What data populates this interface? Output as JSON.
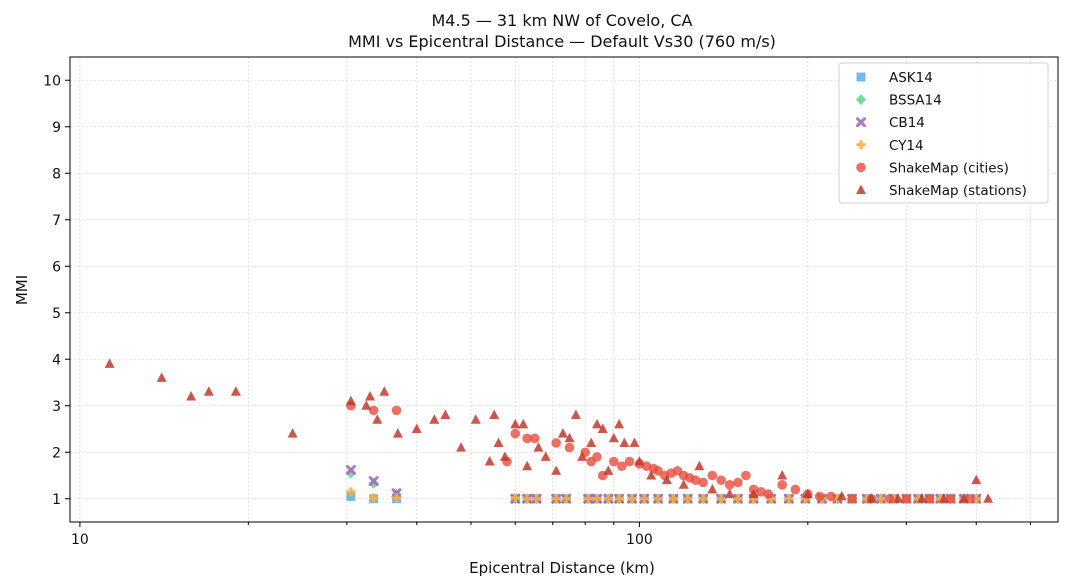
{
  "chart_data": {
    "type": "scatter",
    "title": "M4.5 — 31 km NW of Covelo, CA",
    "subtitle": "MMI vs Epicentral Distance — Default Vs30 (760 m/s)",
    "xlabel": "Epicentral Distance (km)",
    "ylabel": "MMI",
    "xscale": "log",
    "xlim": [
      9.6,
      560
    ],
    "ylim": [
      0.5,
      10.5
    ],
    "xticks": [
      10,
      100
    ],
    "xtick_labels": [
      "10",
      "100"
    ],
    "yticks": [
      1,
      2,
      3,
      4,
      5,
      6,
      7,
      8,
      9,
      10
    ],
    "grid": true,
    "legend_position": "top-right",
    "series": [
      {
        "name": "ASK14",
        "marker": "square",
        "color": "#5DADE2",
        "points": [
          [
            30.5,
            1.05
          ],
          [
            33.5,
            1.0
          ],
          [
            36.8,
            1.0
          ],
          [
            60,
            1.0
          ],
          [
            63,
            1.0
          ],
          [
            65.5,
            1.0
          ],
          [
            71,
            1.0
          ],
          [
            74,
            1.0
          ],
          [
            81,
            1.0
          ],
          [
            84,
            1.0
          ],
          [
            88,
            1.0
          ],
          [
            92,
            1.0
          ],
          [
            97,
            1.0
          ],
          [
            102,
            1.0
          ],
          [
            108,
            1.0
          ],
          [
            115,
            1.0
          ],
          [
            122,
            1.0
          ],
          [
            130,
            1.0
          ],
          [
            140,
            1.0
          ],
          [
            150,
            1.0
          ],
          [
            160,
            1.0
          ],
          [
            172,
            1.0
          ],
          [
            185,
            1.0
          ],
          [
            198,
            1.0
          ],
          [
            212,
            1.0
          ],
          [
            226,
            1.0
          ],
          [
            240,
            1.0
          ],
          [
            255,
            1.0
          ],
          [
            270,
            1.0
          ],
          [
            285,
            1.0
          ],
          [
            300,
            1.0
          ],
          [
            315,
            1.0
          ],
          [
            330,
            1.0
          ],
          [
            345,
            1.0
          ],
          [
            360,
            1.0
          ],
          [
            380,
            1.0
          ],
          [
            400,
            1.0
          ]
        ]
      },
      {
        "name": "BSSA14",
        "marker": "diamond",
        "color": "#58D68D",
        "points": [
          [
            30.5,
            1.55
          ],
          [
            33.5,
            1.33
          ],
          [
            36.8,
            1.1
          ],
          [
            60,
            1.0
          ],
          [
            63,
            1.0
          ],
          [
            65.5,
            1.0
          ],
          [
            71,
            1.0
          ],
          [
            74,
            1.0
          ],
          [
            81,
            1.0
          ],
          [
            84,
            1.0
          ],
          [
            88,
            1.0
          ],
          [
            92,
            1.0
          ],
          [
            97,
            1.0
          ],
          [
            102,
            1.0
          ],
          [
            108,
            1.0
          ],
          [
            115,
            1.0
          ],
          [
            122,
            1.0
          ],
          [
            130,
            1.0
          ],
          [
            140,
            1.0
          ],
          [
            150,
            1.0
          ],
          [
            160,
            1.0
          ],
          [
            172,
            1.0
          ],
          [
            185,
            1.0
          ],
          [
            198,
            1.0
          ],
          [
            212,
            1.0
          ],
          [
            226,
            1.0
          ],
          [
            240,
            1.0
          ],
          [
            255,
            1.0
          ],
          [
            270,
            1.0
          ],
          [
            285,
            1.0
          ],
          [
            300,
            1.0
          ],
          [
            315,
            1.0
          ],
          [
            330,
            1.0
          ],
          [
            345,
            1.0
          ],
          [
            360,
            1.0
          ],
          [
            380,
            1.0
          ],
          [
            400,
            1.0
          ]
        ]
      },
      {
        "name": "CB14",
        "marker": "x",
        "color": "#A569BD",
        "points": [
          [
            30.5,
            1.62
          ],
          [
            33.5,
            1.38
          ],
          [
            36.8,
            1.12
          ],
          [
            60,
            1.0
          ],
          [
            63,
            1.0
          ],
          [
            65.5,
            1.0
          ],
          [
            71,
            1.0
          ],
          [
            74,
            1.0
          ],
          [
            81,
            1.0
          ],
          [
            84,
            1.0
          ],
          [
            88,
            1.0
          ],
          [
            92,
            1.0
          ],
          [
            97,
            1.0
          ],
          [
            102,
            1.0
          ],
          [
            108,
            1.0
          ],
          [
            115,
            1.0
          ],
          [
            122,
            1.0
          ],
          [
            130,
            1.0
          ],
          [
            140,
            1.0
          ],
          [
            150,
            1.0
          ],
          [
            160,
            1.0
          ],
          [
            172,
            1.0
          ],
          [
            185,
            1.0
          ],
          [
            198,
            1.0
          ],
          [
            212,
            1.0
          ],
          [
            226,
            1.0
          ],
          [
            240,
            1.0
          ],
          [
            255,
            1.0
          ],
          [
            270,
            1.0
          ],
          [
            285,
            1.0
          ],
          [
            300,
            1.0
          ],
          [
            315,
            1.0
          ],
          [
            330,
            1.0
          ],
          [
            345,
            1.0
          ],
          [
            360,
            1.0
          ],
          [
            380,
            1.0
          ],
          [
            400,
            1.0
          ]
        ]
      },
      {
        "name": "CY14",
        "marker": "plus",
        "color": "#F5B041",
        "points": [
          [
            30.5,
            1.15
          ],
          [
            33.5,
            1.02
          ],
          [
            36.8,
            1.02
          ],
          [
            60,
            1.02
          ],
          [
            63,
            1.0
          ],
          [
            65.5,
            1.0
          ],
          [
            71,
            1.0
          ],
          [
            74,
            1.0
          ],
          [
            81,
            1.0
          ],
          [
            84,
            1.0
          ],
          [
            88,
            1.0
          ],
          [
            92,
            1.0
          ],
          [
            97,
            1.0
          ],
          [
            102,
            1.0
          ],
          [
            108,
            1.0
          ],
          [
            115,
            1.0
          ],
          [
            122,
            1.0
          ],
          [
            130,
            1.0
          ],
          [
            140,
            1.0
          ],
          [
            150,
            1.0
          ],
          [
            160,
            1.0
          ],
          [
            172,
            1.0
          ],
          [
            185,
            1.0
          ],
          [
            198,
            1.0
          ],
          [
            212,
            1.0
          ],
          [
            226,
            1.0
          ],
          [
            240,
            1.0
          ],
          [
            255,
            1.0
          ],
          [
            270,
            1.0
          ],
          [
            285,
            1.0
          ],
          [
            300,
            1.0
          ],
          [
            315,
            1.0
          ],
          [
            330,
            1.0
          ],
          [
            345,
            1.0
          ],
          [
            360,
            1.0
          ],
          [
            380,
            1.0
          ],
          [
            400,
            1.0
          ]
        ]
      },
      {
        "name": "ShakeMap (cities)",
        "marker": "circle",
        "color": "#E74C3C",
        "points": [
          [
            30.5,
            3.0
          ],
          [
            33.5,
            2.9
          ],
          [
            36.8,
            2.9
          ],
          [
            58,
            1.8
          ],
          [
            60,
            2.4
          ],
          [
            63,
            2.3
          ],
          [
            65,
            2.3
          ],
          [
            71,
            2.2
          ],
          [
            75,
            2.1
          ],
          [
            80,
            2.0
          ],
          [
            82,
            1.8
          ],
          [
            84,
            1.9
          ],
          [
            86,
            1.5
          ],
          [
            90,
            1.8
          ],
          [
            93,
            1.7
          ],
          [
            96,
            1.8
          ],
          [
            100,
            1.75
          ],
          [
            103,
            1.7
          ],
          [
            106,
            1.65
          ],
          [
            108,
            1.6
          ],
          [
            111,
            1.5
          ],
          [
            114,
            1.55
          ],
          [
            117,
            1.6
          ],
          [
            120,
            1.5
          ],
          [
            123,
            1.45
          ],
          [
            126,
            1.4
          ],
          [
            130,
            1.35
          ],
          [
            135,
            1.5
          ],
          [
            140,
            1.4
          ],
          [
            145,
            1.3
          ],
          [
            150,
            1.35
          ],
          [
            155,
            1.5
          ],
          [
            160,
            1.2
          ],
          [
            165,
            1.15
          ],
          [
            170,
            1.1
          ],
          [
            180,
            1.3
          ],
          [
            190,
            1.2
          ],
          [
            200,
            1.1
          ],
          [
            210,
            1.05
          ],
          [
            220,
            1.05
          ],
          [
            240,
            1.0
          ],
          [
            260,
            1.0
          ],
          [
            280,
            1.0
          ],
          [
            300,
            1.0
          ],
          [
            330,
            1.0
          ],
          [
            360,
            1.0
          ],
          [
            390,
            1.0
          ]
        ]
      },
      {
        "name": "ShakeMap (stations)",
        "marker": "triangle",
        "color": "#C0392B",
        "points": [
          [
            11.3,
            3.9
          ],
          [
            14,
            3.6
          ],
          [
            15.8,
            3.2
          ],
          [
            17,
            3.3
          ],
          [
            19,
            3.3
          ],
          [
            24,
            2.4
          ],
          [
            30.5,
            3.1
          ],
          [
            32.5,
            3.0
          ],
          [
            33,
            3.2
          ],
          [
            34,
            2.7
          ],
          [
            35,
            3.3
          ],
          [
            37,
            2.4
          ],
          [
            40,
            2.5
          ],
          [
            43,
            2.7
          ],
          [
            45,
            2.8
          ],
          [
            48,
            2.1
          ],
          [
            51,
            2.7
          ],
          [
            54,
            1.8
          ],
          [
            55,
            2.8
          ],
          [
            56,
            2.2
          ],
          [
            57.5,
            1.9
          ],
          [
            60,
            2.6
          ],
          [
            62,
            2.6
          ],
          [
            63,
            1.7
          ],
          [
            66,
            2.1
          ],
          [
            68,
            1.9
          ],
          [
            71,
            1.6
          ],
          [
            73,
            2.4
          ],
          [
            75,
            2.3
          ],
          [
            77,
            2.8
          ],
          [
            79,
            1.9
          ],
          [
            82,
            2.2
          ],
          [
            84,
            2.6
          ],
          [
            86,
            2.5
          ],
          [
            88,
            1.6
          ],
          [
            90,
            2.3
          ],
          [
            92,
            2.6
          ],
          [
            94,
            2.2
          ],
          [
            98,
            2.2
          ],
          [
            100,
            1.8
          ],
          [
            105,
            1.5
          ],
          [
            112,
            1.4
          ],
          [
            120,
            1.3
          ],
          [
            128,
            1.7
          ],
          [
            135,
            1.2
          ],
          [
            145,
            1.1
          ],
          [
            160,
            1.1
          ],
          [
            180,
            1.5
          ],
          [
            200,
            1.1
          ],
          [
            230,
            1.05
          ],
          [
            260,
            1.0
          ],
          [
            290,
            1.0
          ],
          [
            320,
            1.0
          ],
          [
            350,
            1.0
          ],
          [
            380,
            1.0
          ],
          [
            400,
            1.4
          ],
          [
            420,
            1.0
          ]
        ]
      }
    ]
  }
}
